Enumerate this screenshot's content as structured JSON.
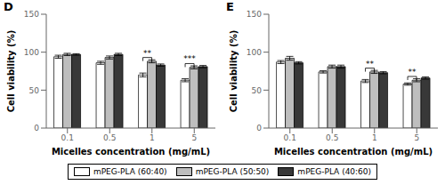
{
  "chart_data": [
    {
      "type": "bar",
      "title": "D",
      "xlabel": "Micelles concentration (mg/mL)",
      "ylabel": "Cell viability (%)",
      "categories": [
        "0.1",
        "0.5",
        "1",
        "5"
      ],
      "series": [
        {
          "name": "mPEG-PLA (60:40)",
          "color": "#ffffff",
          "values": [
            94,
            86,
            70,
            63
          ],
          "errors": [
            2.0,
            2.0,
            2.5,
            2.0
          ]
        },
        {
          "name": "mPEG-PLA (50:50)",
          "color": "#bebebe",
          "values": [
            97,
            93,
            88,
            80
          ],
          "errors": [
            1.5,
            2.0,
            2.0,
            2.0
          ]
        },
        {
          "name": "mPEG-PLA (40:60)",
          "color": "#383838",
          "values": [
            97,
            97,
            83,
            81
          ],
          "errors": [
            1.0,
            1.5,
            1.5,
            1.5
          ]
        }
      ],
      "ylim": [
        0,
        150
      ],
      "yticks": [
        0,
        50,
        100,
        150
      ],
      "legend": "bottom",
      "annotations": [
        {
          "text": "**",
          "category": "1",
          "series": [
            "mPEG-PLA (60:40)",
            "mPEG-PLA (50:50)"
          ],
          "y": 93
        },
        {
          "text": "***",
          "category": "5",
          "series": [
            "mPEG-PLA (60:40)",
            "mPEG-PLA (50:50)"
          ],
          "y": 85
        }
      ]
    },
    {
      "type": "bar",
      "title": "E",
      "xlabel": "Micelles concentration (mg/mL)",
      "ylabel": "Cell viability (%)",
      "categories": [
        "0.1",
        "0.5",
        "1",
        "5"
      ],
      "series": [
        {
          "name": "mPEG-PLA (60:40)",
          "color": "#ffffff",
          "values": [
            87,
            74,
            62,
            58
          ],
          "errors": [
            2.0,
            1.5,
            2.0,
            1.5
          ]
        },
        {
          "name": "mPEG-PLA (50:50)",
          "color": "#bebebe",
          "values": [
            92,
            81,
            74,
            63
          ],
          "errors": [
            2.5,
            2.0,
            2.0,
            2.0
          ]
        },
        {
          "name": "mPEG-PLA (40:60)",
          "color": "#383838",
          "values": [
            86,
            81,
            73,
            66
          ],
          "errors": [
            1.5,
            2.0,
            1.5,
            1.5
          ]
        }
      ],
      "ylim": [
        0,
        150
      ],
      "yticks": [
        0,
        50,
        100,
        150
      ],
      "legend": "bottom",
      "annotations": [
        {
          "text": "**",
          "category": "1",
          "series": [
            "mPEG-PLA (60:40)",
            "mPEG-PLA (50:50)"
          ],
          "y": 79
        },
        {
          "text": "**",
          "category": "5",
          "series": [
            "mPEG-PLA (60:40)",
            "mPEG-PLA (50:50)"
          ],
          "y": 68
        }
      ]
    }
  ]
}
